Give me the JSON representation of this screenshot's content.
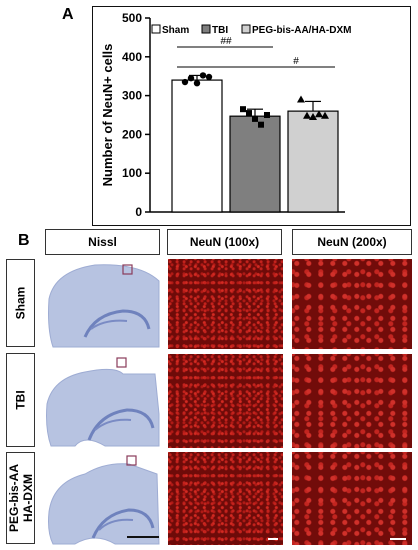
{
  "panel_a_label": "A",
  "panel_b_label": "B",
  "chart_data": {
    "type": "bar",
    "categories": [
      "Sham",
      "TBI",
      "PEG-bis-AA/HA-DXM"
    ],
    "values": [
      340,
      247,
      260
    ],
    "errors": [
      12,
      18,
      25
    ],
    "points": [
      [
        335,
        345,
        332,
        352,
        348
      ],
      [
        265,
        255,
        240,
        225,
        250
      ],
      [
        290,
        248,
        245,
        252,
        248
      ]
    ],
    "bar_colors": [
      "#ffffff",
      "#7f7f7f",
      "#d0d0d0"
    ],
    "marker_shapes": [
      "circle",
      "square",
      "triangle"
    ],
    "ylabel": "Number of NeuN+ cells",
    "xlabel": "",
    "ylim": [
      0,
      500
    ],
    "yticks": [
      0,
      100,
      200,
      300,
      400,
      500
    ],
    "legend": [
      "Sham",
      "TBI",
      "PEG-bis-AA/HA-DXM"
    ],
    "legend_position": "top",
    "annotations": [
      {
        "text": "##",
        "from": 0,
        "to": 1
      },
      {
        "text": "#",
        "from": 0,
        "to": 2
      }
    ]
  },
  "grid": {
    "headers": [
      "Nissl",
      "NeuN  (100x)",
      "NeuN  (200x)"
    ],
    "rows": [
      "Sham",
      "TBI",
      "PEG-bis-AA\nHA-DXM"
    ]
  }
}
